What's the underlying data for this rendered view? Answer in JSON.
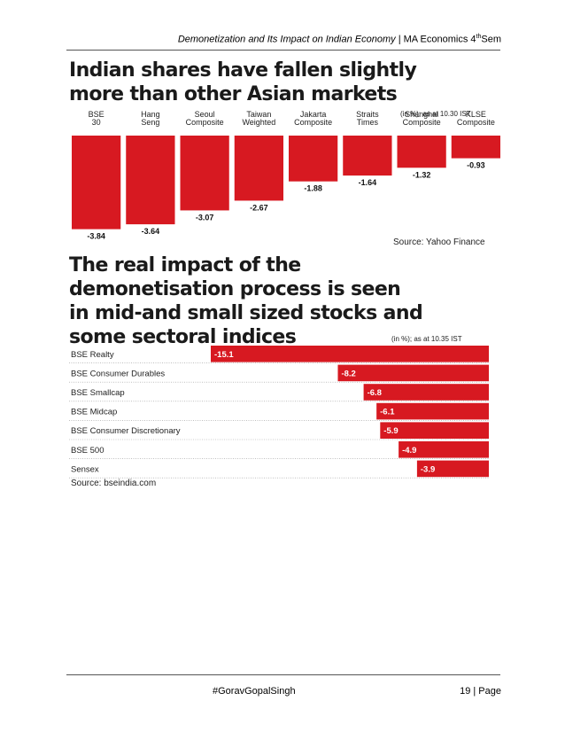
{
  "header": {
    "title_italic": "Demonetization and Its Impact on Indian Economy |",
    "course_prefix": " MA Economics 4",
    "course_sup": "th",
    "course_suffix": "Sem"
  },
  "figure1": {
    "title_line1": "Indian shares have fallen slightly",
    "title_line2": "more than other Asian markets",
    "note": "(in %); as at 10.30 IST",
    "source": "Source: Yahoo Finance"
  },
  "figure2": {
    "title_line1": "The real impact of the",
    "title_line2": "demonetisation process is seen",
    "title_line3": "in mid-and small sized stocks and",
    "title_line4": "some sectoral indices",
    "note": "(in %); as at 10.35 IST",
    "source": "Source: bseindia.com"
  },
  "chart_data": [
    {
      "type": "bar",
      "orientation": "vertical",
      "categories": [
        "BSE 30",
        "Hang Seng",
        "Seoul Composite",
        "Taiwan Weighted",
        "Jakarta Composite",
        "Straits Times",
        "Shanghai Composite",
        "KLSE Composite"
      ],
      "values": [
        -3.84,
        -3.64,
        -3.07,
        -2.67,
        -1.88,
        -1.64,
        -1.32,
        -0.93
      ],
      "value_labels": [
        "-3.84",
        "-3.64",
        "-3.07",
        "-2.67",
        "-1.88",
        "-1.64",
        "-1.32",
        "-0.93"
      ],
      "title": "Indian shares have fallen slightly more than other Asian markets",
      "ylim": [
        -4,
        0
      ],
      "bar_color": "#d71921"
    },
    {
      "type": "bar",
      "orientation": "horizontal",
      "categories": [
        "BSE Realty",
        "BSE Consumer Durables",
        "BSE Smallcap",
        "BSE Midcap",
        "BSE Consumer Discretionary",
        "BSE 500",
        "Sensex"
      ],
      "values": [
        -15.1,
        -8.2,
        -6.8,
        -6.1,
        -5.9,
        -4.9,
        -3.9
      ],
      "value_labels": [
        "-15.1",
        "-8.2",
        "-6.8",
        "-6.1",
        "-5.9",
        "-4.9",
        "-3.9"
      ],
      "title": "The real impact of the demonetisation process is seen in mid-and small sized stocks and some sectoral indices",
      "xlim": [
        -15.1,
        0
      ],
      "bar_color": "#d71921"
    }
  ],
  "footer": {
    "tag": "#GoravGopalSingh",
    "page": "19 | Page"
  }
}
